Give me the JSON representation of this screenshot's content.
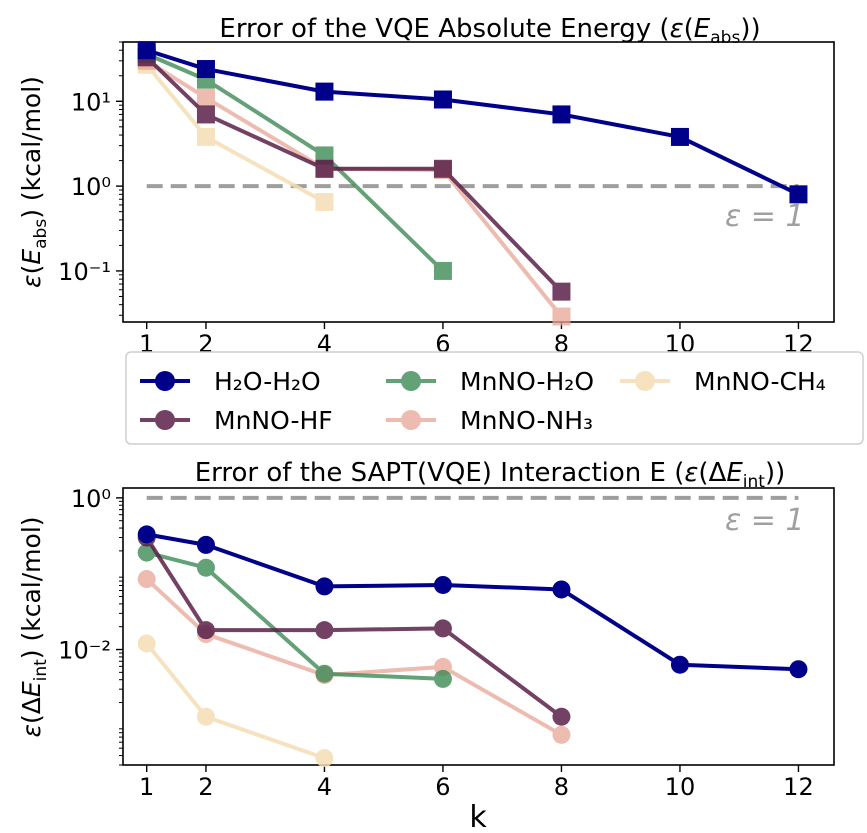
{
  "figure": {
    "x_ticks": [
      1,
      2,
      4,
      6,
      8,
      10,
      12
    ],
    "xlabel": "k",
    "threshold_label": "ε = 1",
    "threshold_color": "#9e9e9e",
    "legend": {
      "entries": [
        "H₂O-H₂O",
        "MnNO-H₂O",
        "MnNO-CH₄",
        "MnNO-HF",
        "MnNO-NH₃"
      ]
    }
  },
  "chart_data": [
    {
      "type": "line",
      "title": "Error of the VQE Absolute Energy (ε(E_abs))",
      "ylabel": "ε(E_abs) (kcal/mol)",
      "yscale": "log",
      "ylim": [
        0.025,
        50
      ],
      "xlim": [
        0.6,
        12.6
      ],
      "threshold": 1,
      "marker": "square",
      "y_ticks": [
        {
          "value": 10,
          "label": "10¹"
        },
        {
          "value": 1,
          "label": "10⁰"
        },
        {
          "value": 0.1,
          "label": "10⁻¹"
        }
      ],
      "series": [
        {
          "name": "H₂O-H₂O",
          "color": "#00008b",
          "alpha": 1.0,
          "x": [
            1,
            2,
            4,
            6,
            8,
            10,
            12
          ],
          "y": [
            40,
            24,
            13,
            10.5,
            7,
            3.8,
            0.8
          ]
        },
        {
          "name": "MnNO-H₂O",
          "color": "#3d8a56",
          "alpha": 0.8,
          "x": [
            1,
            2,
            4,
            6
          ],
          "y": [
            36,
            18,
            2.3,
            0.1
          ]
        },
        {
          "name": "MnNO-CH₄",
          "color": "#f5deb3",
          "alpha": 0.85,
          "x": [
            1,
            2,
            4
          ],
          "y": [
            27,
            3.8,
            0.65
          ]
        },
        {
          "name": "MnNO-HF",
          "color": "#5a2048",
          "alpha": 0.85,
          "x": [
            1,
            2,
            4,
            6,
            8
          ],
          "y": [
            33,
            7,
            1.6,
            1.6,
            0.057
          ]
        },
        {
          "name": "MnNO-NH₃",
          "color": "#e8a595",
          "alpha": 0.75,
          "x": [
            1,
            2,
            4,
            6,
            8
          ],
          "y": [
            30,
            11,
            1.6,
            1.55,
            0.029
          ]
        }
      ]
    },
    {
      "type": "line",
      "title": "Error of the SAPT(VQE) Interaction E (ε(ΔE_int))",
      "ylabel": "ε(ΔE_int) (kcal/mol)",
      "yscale": "log",
      "ylim": [
        0.0003,
        1.35
      ],
      "xlim": [
        0.6,
        12.6
      ],
      "threshold": 1,
      "marker": "circle",
      "y_ticks": [
        {
          "value": 1,
          "label": "10⁰"
        },
        {
          "value": 0.01,
          "label": "10⁻²"
        }
      ],
      "series": [
        {
          "name": "H₂O-H₂O",
          "color": "#00008b",
          "alpha": 1.0,
          "x": [
            1,
            2,
            4,
            6,
            8,
            10,
            12
          ],
          "y": [
            0.33,
            0.24,
            0.068,
            0.071,
            0.062,
            0.0063,
            0.0055
          ]
        },
        {
          "name": "MnNO-H₂O",
          "color": "#3d8a56",
          "alpha": 0.8,
          "x": [
            1,
            2,
            4,
            6
          ],
          "y": [
            0.19,
            0.12,
            0.0048,
            0.0041
          ]
        },
        {
          "name": "MnNO-CH₄",
          "color": "#f5deb3",
          "alpha": 0.85,
          "x": [
            1,
            2,
            4
          ],
          "y": [
            0.012,
            0.0013,
            0.00037
          ]
        },
        {
          "name": "MnNO-HF",
          "color": "#5a2048",
          "alpha": 0.85,
          "x": [
            1,
            2,
            4,
            6,
            8
          ],
          "y": [
            0.3,
            0.018,
            0.018,
            0.019,
            0.0013
          ]
        },
        {
          "name": "MnNO-NH₃",
          "color": "#e8a595",
          "alpha": 0.75,
          "x": [
            1,
            2,
            4,
            6,
            8
          ],
          "y": [
            0.085,
            0.016,
            0.0046,
            0.0059,
            0.00075
          ]
        }
      ]
    }
  ]
}
